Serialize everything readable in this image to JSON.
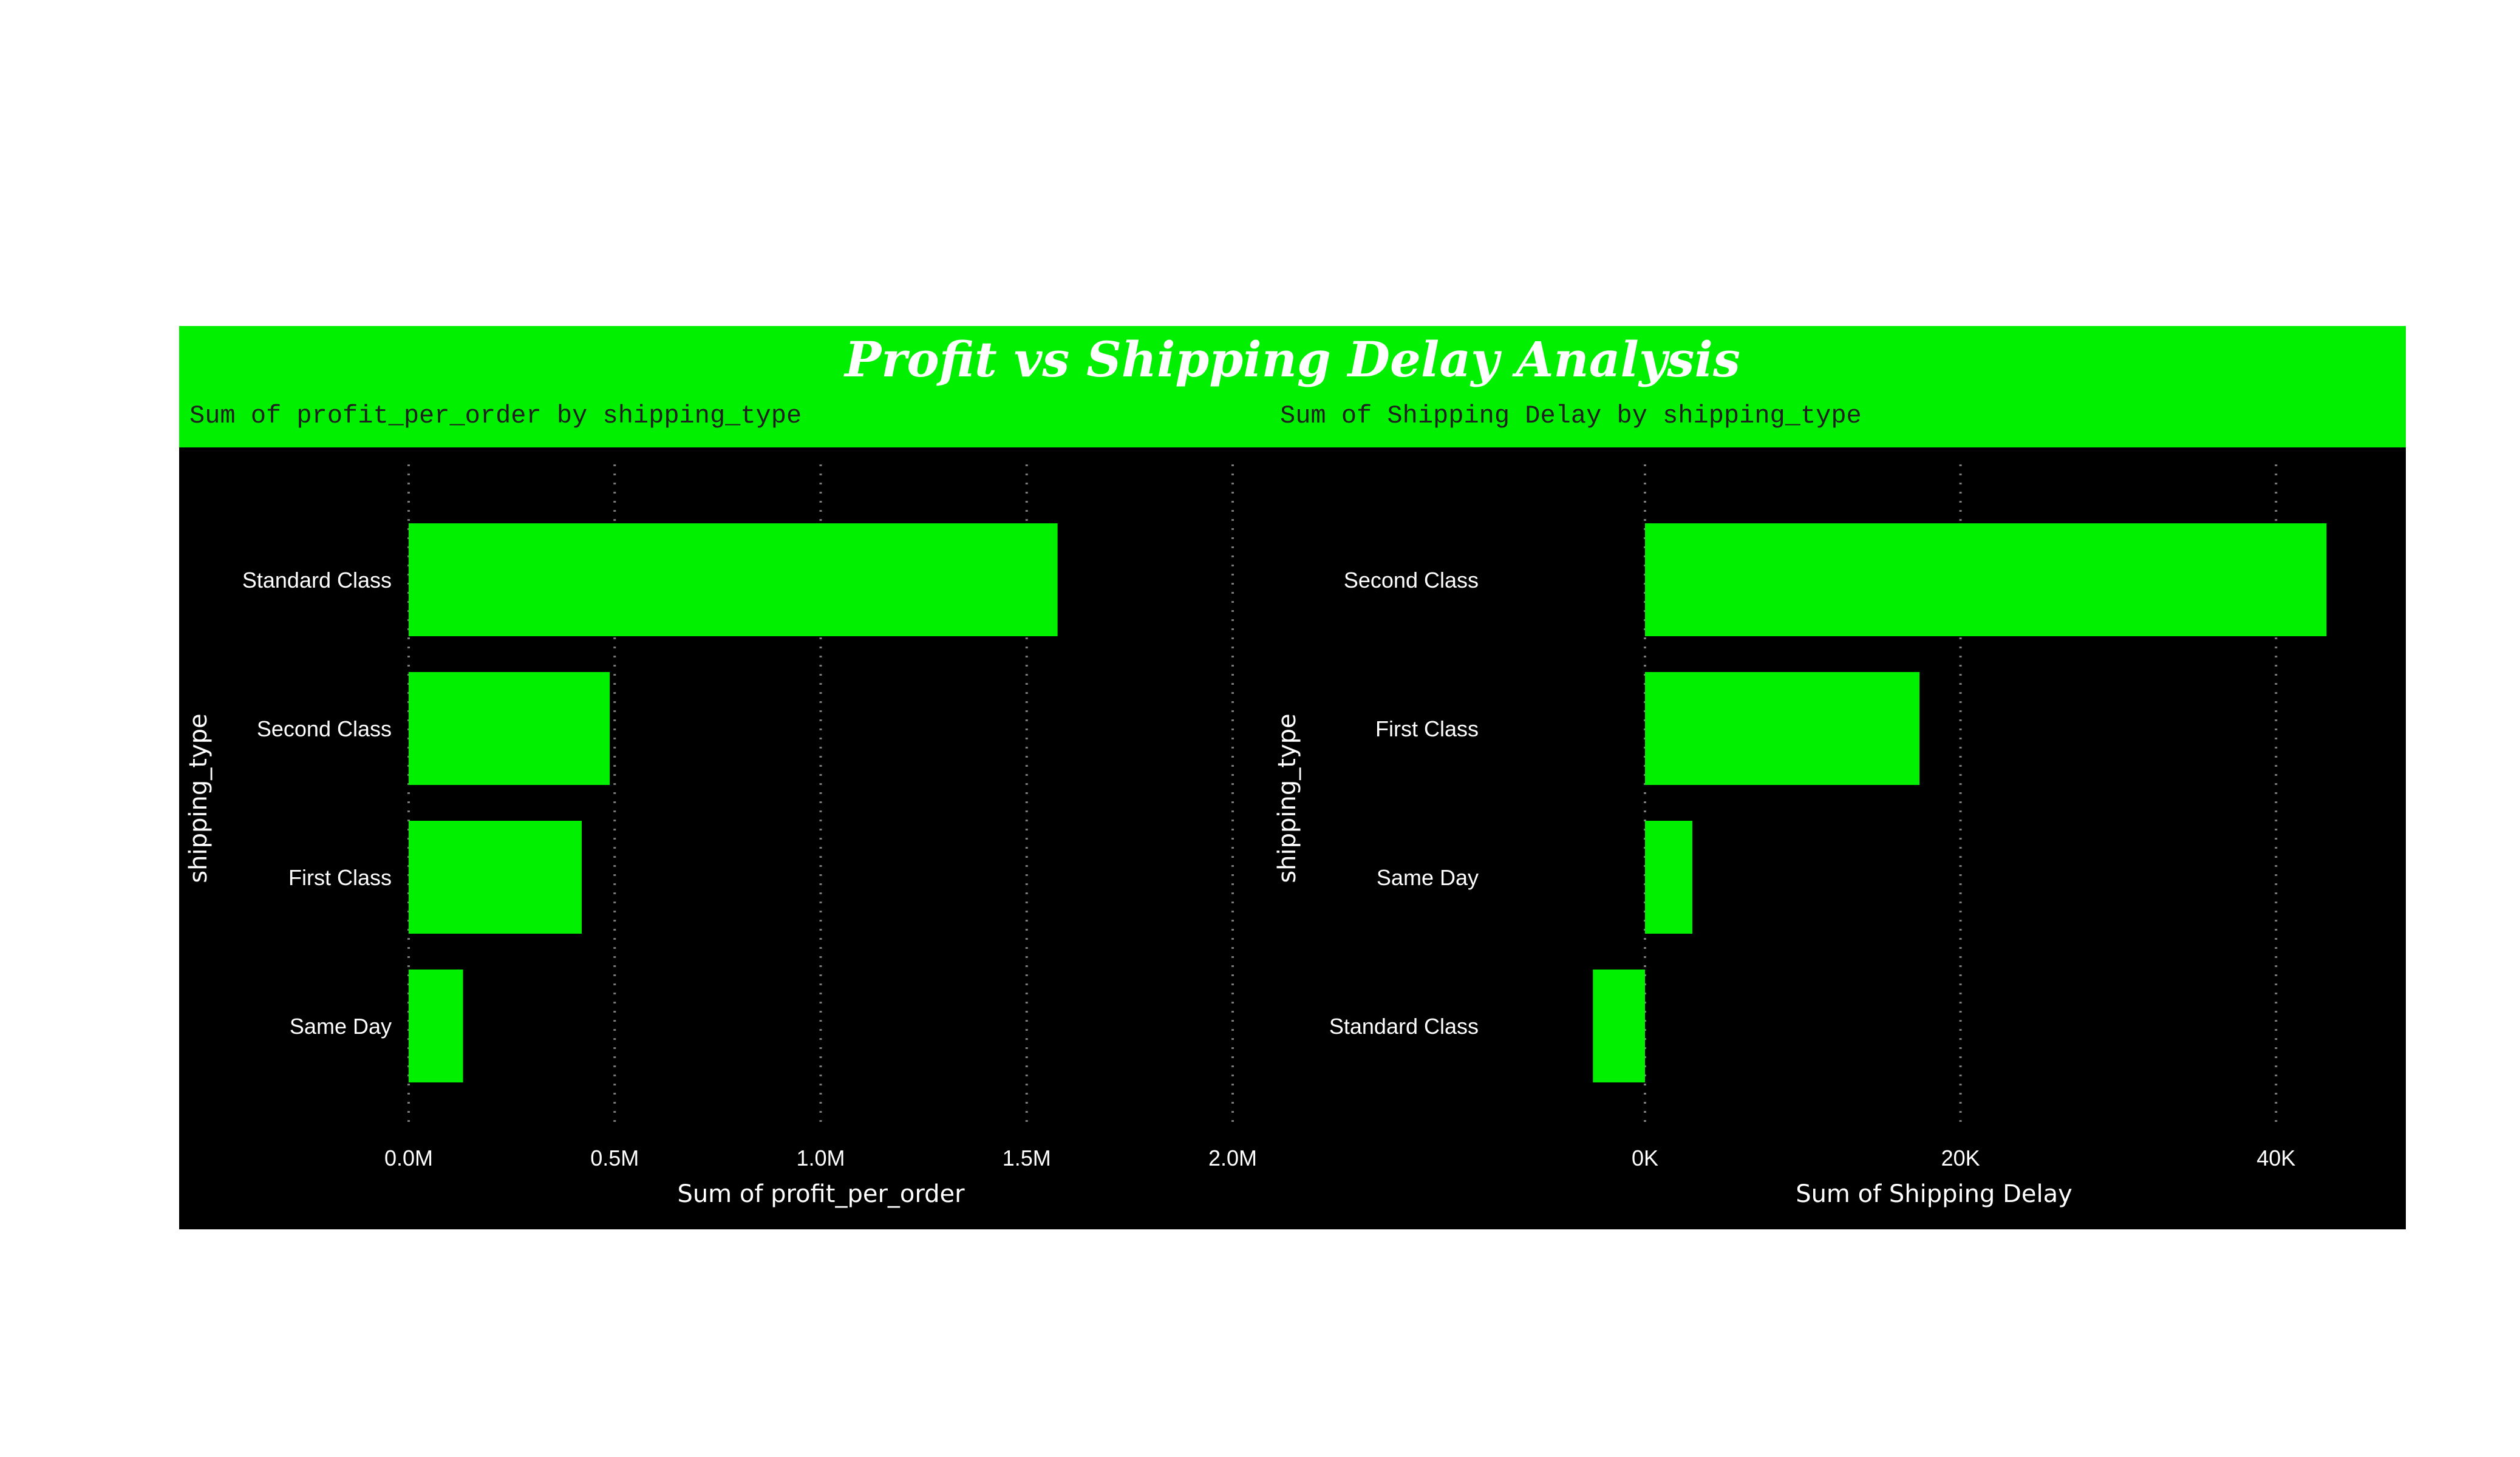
{
  "report": {
    "title": "Profit vs Shipping  Delay Analysis",
    "colors": {
      "header_band": "#00f000",
      "panel_background": "#000000",
      "bar": "#00f000",
      "text": "#ffffff",
      "gridline": "#7a7a7a"
    }
  },
  "chart_data": [
    {
      "type": "bar",
      "orientation": "horizontal",
      "title": "Sum of profit_per_order by shipping_type",
      "xlabel": "Sum of profit_per_order",
      "ylabel": "shipping_type",
      "categories": [
        "Standard Class",
        "Second Class",
        "First Class",
        "Same Day"
      ],
      "values": [
        1575000,
        488000,
        420000,
        132000
      ],
      "xlim": [
        0,
        2000000
      ],
      "x_ticks": [
        0,
        500000,
        1000000,
        1500000,
        2000000
      ],
      "x_tick_labels": [
        "0.0M",
        "0.5M",
        "1.0M",
        "1.5M",
        "2.0M"
      ],
      "grid": "vertical dotted",
      "legend": "none"
    },
    {
      "type": "bar",
      "orientation": "horizontal",
      "title": "Sum of Shipping Delay by shipping_type",
      "xlabel": "Sum of Shipping Delay",
      "ylabel": "shipping_type",
      "categories": [
        "Second Class",
        "First Class",
        "Same Day",
        "Standard Class"
      ],
      "values": [
        43200,
        17400,
        3000,
        -3300
      ],
      "xlim": [
        0,
        52000
      ],
      "x_ticks": [
        0,
        20000,
        40000
      ],
      "x_tick_labels": [
        "0K",
        "20K",
        "40K"
      ],
      "grid": "vertical dotted",
      "legend": "none"
    }
  ]
}
